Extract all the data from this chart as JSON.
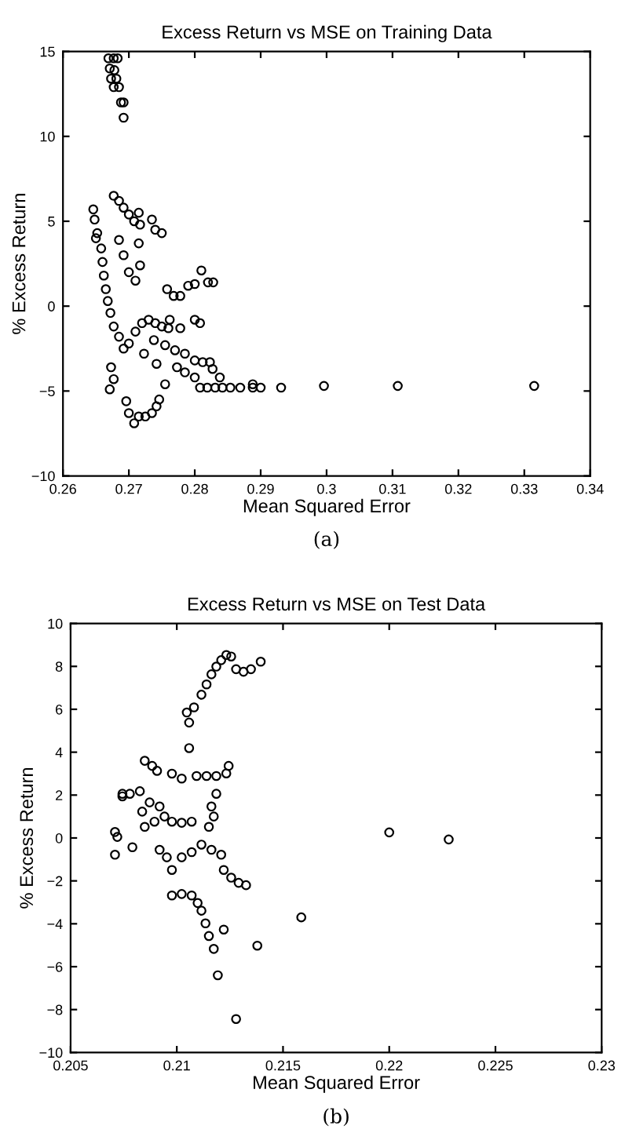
{
  "chart_data": [
    {
      "type": "scatter",
      "title": "Excess Return vs MSE on Training Data",
      "xlabel": "Mean Squared Error",
      "ylabel": "% Excess Return",
      "annotations": [
        "(a)"
      ],
      "marker": "circle",
      "grid": false,
      "legend": false,
      "xlim": [
        0.26,
        0.34
      ],
      "xticks": [
        0.26,
        0.27,
        0.28,
        0.29,
        0.3,
        0.31,
        0.32,
        0.33,
        0.34
      ],
      "ylim": [
        -10,
        15
      ],
      "yticks": [
        -10,
        -5,
        0,
        5,
        10,
        15
      ],
      "series": [
        {
          "color": "#000000",
          "x": [
            0.2669,
            0.2677,
            0.2683,
            0.2671,
            0.2678,
            0.2673,
            0.2681,
            0.2677,
            0.2685,
            0.2688,
            0.2692,
            0.2692,
            0.2677,
            0.2685,
            0.2692,
            0.27,
            0.2708,
            0.2715,
            0.2717,
            0.2646,
            0.2648,
            0.2652,
            0.265,
            0.2658,
            0.266,
            0.2662,
            0.2665,
            0.2668,
            0.2672,
            0.2677,
            0.2685,
            0.2692,
            0.27,
            0.271,
            0.272,
            0.273,
            0.274,
            0.275,
            0.276,
            0.2685,
            0.2692,
            0.27,
            0.271,
            0.2715,
            0.2717,
            0.2735,
            0.274,
            0.275,
            0.2758,
            0.2768,
            0.2778,
            0.279,
            0.28,
            0.281,
            0.282,
            0.2828,
            0.2762,
            0.2778,
            0.28,
            0.2808,
            0.2738,
            0.2755,
            0.277,
            0.2785,
            0.28,
            0.2812,
            0.2823,
            0.2723,
            0.2742,
            0.2773,
            0.2785,
            0.28,
            0.2827,
            0.2838,
            0.2755,
            0.2808,
            0.2819,
            0.2831,
            0.2842,
            0.2854,
            0.2869,
            0.2888,
            0.29,
            0.2931,
            0.2996,
            0.2888,
            0.3108,
            0.3315,
            0.2673,
            0.2677,
            0.2671,
            0.2696,
            0.27,
            0.2708,
            0.2715,
            0.2725,
            0.2735,
            0.2742,
            0.2746
          ],
          "values": [
            14.6,
            14.6,
            14.6,
            14.0,
            13.9,
            13.4,
            13.4,
            12.9,
            12.9,
            12.0,
            12.0,
            11.1,
            6.5,
            6.2,
            5.8,
            5.4,
            5.0,
            5.5,
            4.8,
            5.7,
            5.1,
            4.3,
            4.0,
            3.4,
            2.6,
            1.8,
            1.0,
            0.3,
            -0.4,
            -1.2,
            -1.8,
            -2.5,
            -2.2,
            -1.5,
            -1.0,
            -0.8,
            -1.0,
            -1.2,
            -1.3,
            3.9,
            3.0,
            2.0,
            1.5,
            3.7,
            2.4,
            5.1,
            4.5,
            4.3,
            1.0,
            0.6,
            0.6,
            1.2,
            1.3,
            2.1,
            1.4,
            1.4,
            -0.8,
            -1.3,
            -0.8,
            -1.0,
            -2.0,
            -2.3,
            -2.6,
            -2.8,
            -3.2,
            -3.3,
            -3.3,
            -2.8,
            -3.4,
            -3.6,
            -3.9,
            -4.2,
            -3.7,
            -4.2,
            -4.6,
            -4.8,
            -4.8,
            -4.8,
            -4.8,
            -4.8,
            -4.8,
            -4.8,
            -4.8,
            -4.8,
            -4.7,
            -4.6,
            -4.7,
            -4.7,
            -3.6,
            -4.3,
            -4.9,
            -5.6,
            -6.3,
            -6.9,
            -6.5,
            -6.5,
            -6.3,
            -5.9,
            -5.5
          ]
        }
      ]
    },
    {
      "type": "scatter",
      "title": "Excess Return vs MSE on Test Data",
      "xlabel": "Mean Squared Error",
      "ylabel": "% Excess Return",
      "annotations": [
        "(b)"
      ],
      "marker": "circle",
      "grid": false,
      "legend": false,
      "xlim": [
        0.205,
        0.23
      ],
      "xticks": [
        0.205,
        0.21,
        0.215,
        0.22,
        0.225,
        0.23
      ],
      "ylim": [
        -10,
        10
      ],
      "yticks": [
        -10,
        -8,
        -6,
        -4,
        -2,
        0,
        2,
        4,
        6,
        8,
        10
      ],
      "series": [
        {
          "color": "#000000",
          "x": [
            0.21116,
            0.2114,
            0.21163,
            0.21186,
            0.21209,
            0.21233,
            0.21256,
            0.21279,
            0.21314,
            0.21349,
            0.21395,
            0.21047,
            0.21058,
            0.21081,
            0.21058,
            0.21093,
            0.2114,
            0.21186,
            0.21233,
            0.21244,
            0.21186,
            0.20709,
            0.2072,
            0.20709,
            0.20744,
            0.20791,
            0.20744,
            0.20779,
            0.20849,
            0.20884,
            0.20907,
            0.20826,
            0.20837,
            0.20849,
            0.20872,
            0.20895,
            0.20919,
            0.20942,
            0.20977,
            0.21023,
            0.2107,
            0.20977,
            0.21023,
            0.20919,
            0.20953,
            0.20977,
            0.21023,
            0.2107,
            0.21116,
            0.21163,
            0.21209,
            0.21163,
            0.21151,
            0.21174,
            0.21221,
            0.21256,
            0.21291,
            0.21326,
            0.20977,
            0.21023,
            0.2107,
            0.21098,
            0.21116,
            0.21135,
            0.21151,
            0.21174,
            0.21221,
            0.21193,
            0.21279,
            0.21379,
            0.21586,
            0.22,
            0.2228
          ],
          "values": [
            6.68,
            7.16,
            7.63,
            7.99,
            8.29,
            8.53,
            8.46,
            7.87,
            7.75,
            7.87,
            8.22,
            5.85,
            5.38,
            6.09,
            4.19,
            2.89,
            2.89,
            2.89,
            3.01,
            3.36,
            2.06,
            0.28,
            0.05,
            -0.78,
            1.94,
            -0.43,
            2.06,
            2.06,
            3.6,
            3.36,
            3.13,
            2.18,
            1.23,
            0.52,
            1.66,
            0.76,
            1.47,
            1.0,
            0.76,
            0.71,
            0.76,
            3.0,
            2.77,
            -0.55,
            -0.9,
            -1.49,
            -0.9,
            -0.66,
            -0.31,
            -0.55,
            -0.78,
            1.47,
            0.52,
            1.0,
            -1.49,
            -1.85,
            -2.09,
            -2.2,
            -2.68,
            -2.61,
            -2.68,
            -3.03,
            -3.39,
            -3.98,
            -4.57,
            -5.17,
            -4.27,
            -6.4,
            -8.44,
            -5.02,
            -3.7,
            0.26,
            -0.07
          ]
        }
      ]
    }
  ]
}
